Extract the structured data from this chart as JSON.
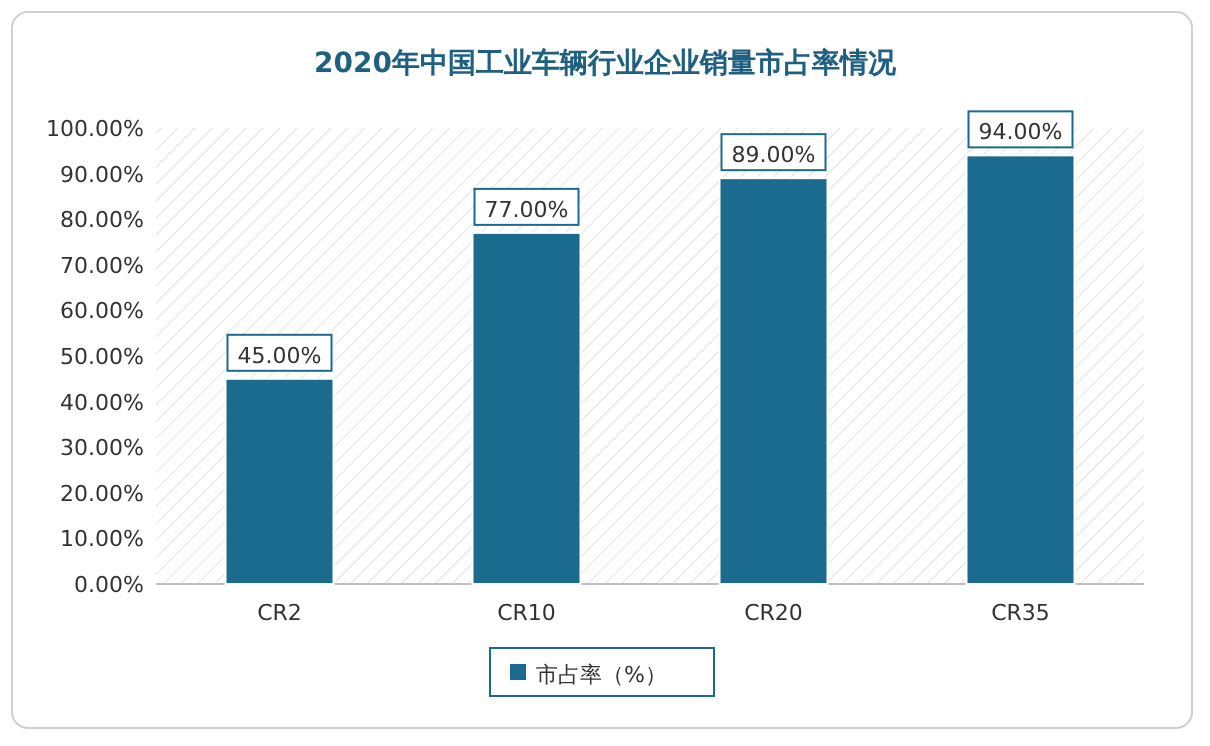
{
  "chart_data": {
    "type": "bar",
    "title": "2020年中国工业车辆行业企业销量市占率情况",
    "categories": [
      "CR2",
      "CR10",
      "CR20",
      "CR35"
    ],
    "series": [
      {
        "name": "市占率（%）",
        "color": "#1b6b8f",
        "values": [
          45,
          77,
          89,
          94
        ],
        "value_labels": [
          "45.00%",
          "77.00%",
          "89.00%",
          "94.00%"
        ]
      }
    ],
    "ylim": [
      0,
      100
    ],
    "yticks": [
      {
        "value": 0,
        "label": "0.00%"
      },
      {
        "value": 10,
        "label": "10.00%"
      },
      {
        "value": 20,
        "label": "20.00%"
      },
      {
        "value": 30,
        "label": "30.00%"
      },
      {
        "value": 40,
        "label": "40.00%"
      },
      {
        "value": 50,
        "label": "50.00%"
      },
      {
        "value": 60,
        "label": "60.00%"
      },
      {
        "value": 70,
        "label": "70.00%"
      },
      {
        "value": 80,
        "label": "80.00%"
      },
      {
        "value": 90,
        "label": "90.00%"
      },
      {
        "value": 100,
        "label": "100.00%"
      }
    ],
    "legend": "bottom"
  }
}
